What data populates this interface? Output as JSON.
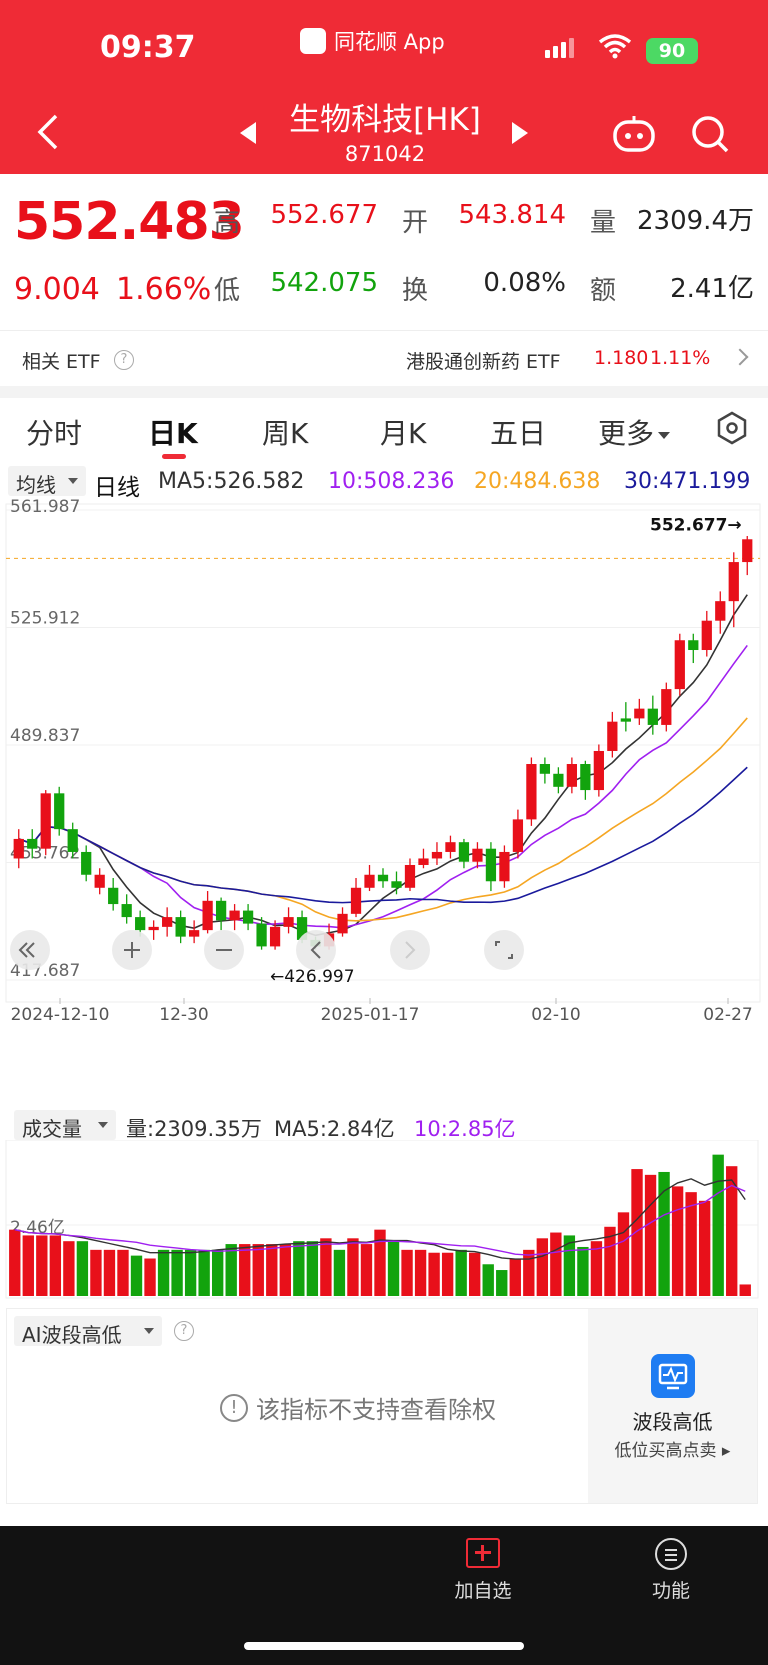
{
  "status": {
    "time": "09:37",
    "app": "同花顺 App",
    "battery": "90"
  },
  "header": {
    "title": "生物科技[HK]",
    "code": "871042"
  },
  "quote": {
    "price": "552.483",
    "change": "9.004",
    "change_pct": "1.66%",
    "high_label": "高",
    "high": "552.677",
    "open_label": "开",
    "open": "543.814",
    "vol_label": "量",
    "volume": "2309.4万",
    "low_label": "低",
    "low": "542.075",
    "turnover_label": "换",
    "turnover": "0.08%",
    "amount_label": "额",
    "amount": "2.41亿"
  },
  "etf": {
    "label": "相关 ETF",
    "name": "港股通创新药 ETF",
    "value": "1.180",
    "pct": "1.11%"
  },
  "tabs": [
    "分时",
    "日K",
    "周K",
    "月K",
    "五日",
    "更多"
  ],
  "ma_bar": {
    "selector": "均线",
    "period": "日线",
    "ma5": "MA5:526.582",
    "ma10": "10:508.236",
    "ma20": "20:484.638",
    "ma30": "30:471.199"
  },
  "colors": {
    "up": "#e8101a",
    "down": "#12a30d",
    "ma5": "#333333",
    "ma10": "#a020f0",
    "ma20": "#f5a623",
    "ma30": "#1a1a9c",
    "header": "#ef2b36"
  },
  "chart_data": [
    {
      "type": "candlestick",
      "ylim": [
        417.687,
        561.987
      ],
      "y_ticks": [
        "561.987",
        "525.912",
        "489.837",
        "453.762",
        "417.687"
      ],
      "x_ticks": [
        "2024-12-10",
        "12-30",
        "2025-01-17",
        "02-10",
        "02-27"
      ],
      "max_label": "552.677→",
      "min_label": "←426.997",
      "candles": [
        [
          455,
          461,
          452,
          464,
          1
        ],
        [
          461,
          458,
          455,
          464,
          0
        ],
        [
          458,
          475,
          456,
          476,
          1
        ],
        [
          475,
          464,
          462,
          477,
          0
        ],
        [
          464,
          457,
          455,
          466,
          0
        ],
        [
          457,
          450,
          448,
          459,
          0
        ],
        [
          450,
          446,
          444,
          452,
          1
        ],
        [
          446,
          441,
          439,
          449,
          0
        ],
        [
          441,
          437,
          435,
          444,
          0
        ],
        [
          437,
          433,
          431,
          439,
          0
        ],
        [
          433,
          434,
          430,
          436,
          1
        ],
        [
          434,
          437,
          431,
          440,
          1
        ],
        [
          437,
          431,
          429,
          439,
          0
        ],
        [
          431,
          433,
          429,
          436,
          1
        ],
        [
          433,
          442,
          432,
          445,
          1
        ],
        [
          442,
          436,
          433,
          443,
          0
        ],
        [
          436,
          439,
          433,
          441,
          1
        ],
        [
          439,
          435,
          433,
          441,
          0
        ],
        [
          435,
          428,
          427,
          437,
          0
        ],
        [
          428,
          434,
          427,
          436,
          1
        ],
        [
          434,
          437,
          432,
          440,
          1
        ],
        [
          437,
          430,
          429,
          439,
          0
        ],
        [
          430,
          428,
          427,
          431,
          0
        ],
        [
          428,
          432,
          427,
          435,
          1
        ],
        [
          432,
          438,
          431,
          440,
          1
        ],
        [
          438,
          446,
          437,
          449,
          1
        ],
        [
          446,
          450,
          445,
          453,
          1
        ],
        [
          450,
          448,
          446,
          452,
          0
        ],
        [
          448,
          446,
          444,
          451,
          0
        ],
        [
          446,
          453,
          445,
          455,
          1
        ],
        [
          453,
          455,
          452,
          458,
          1
        ],
        [
          455,
          457,
          453,
          460,
          1
        ],
        [
          457,
          460,
          455,
          462,
          1
        ],
        [
          460,
          454,
          452,
          461,
          0
        ],
        [
          454,
          458,
          452,
          460,
          1
        ],
        [
          458,
          448,
          445,
          460,
          0
        ],
        [
          448,
          457,
          446,
          459,
          1
        ],
        [
          457,
          467,
          455,
          470,
          1
        ],
        [
          467,
          484,
          465,
          486,
          1
        ],
        [
          484,
          481,
          478,
          486,
          0
        ],
        [
          481,
          477,
          475,
          483,
          0
        ],
        [
          477,
          484,
          475,
          486,
          1
        ],
        [
          484,
          476,
          473,
          485,
          0
        ],
        [
          476,
          488,
          474,
          490,
          1
        ],
        [
          488,
          497,
          486,
          500,
          1
        ],
        [
          497,
          498,
          494,
          503,
          0
        ],
        [
          498,
          501,
          496,
          504,
          1
        ],
        [
          501,
          496,
          493,
          505,
          0
        ],
        [
          496,
          507,
          494,
          509,
          1
        ],
        [
          507,
          522,
          505,
          524,
          1
        ],
        [
          522,
          519,
          515,
          524,
          0
        ],
        [
          519,
          528,
          517,
          531,
          1
        ],
        [
          528,
          534,
          524,
          537,
          1
        ],
        [
          534,
          546,
          526,
          549,
          1
        ],
        [
          546,
          553,
          542,
          554,
          1
        ]
      ]
    },
    {
      "type": "bar",
      "title": "成交量",
      "label_vol": "量:2309.35万",
      "label_ma5": "MA5:2.84亿",
      "label_ma10": "10:2.85亿",
      "ref_tick": "2.46亿",
      "values": [
        2.3,
        2.1,
        2.1,
        2.1,
        1.9,
        1.9,
        1.6,
        1.6,
        1.6,
        1.4,
        1.3,
        1.6,
        1.6,
        1.6,
        1.6,
        1.6,
        1.8,
        1.8,
        1.8,
        1.8,
        1.8,
        1.9,
        1.9,
        2.0,
        1.6,
        2.0,
        1.8,
        2.3,
        1.9,
        1.6,
        1.6,
        1.5,
        1.5,
        1.6,
        1.5,
        1.1,
        0.9,
        1.3,
        1.6,
        2.0,
        2.2,
        2.1,
        1.7,
        1.9,
        2.4,
        2.9,
        4.4,
        4.2,
        4.3,
        3.8,
        3.6,
        3.3,
        4.9,
        4.5,
        0.4
      ],
      "ups": [
        1,
        1,
        1,
        1,
        1,
        0,
        1,
        1,
        1,
        0,
        1,
        0,
        0,
        0,
        0,
        0,
        0,
        1,
        1,
        1,
        1,
        0,
        0,
        1,
        0,
        1,
        1,
        1,
        0,
        1,
        1,
        1,
        1,
        0,
        1,
        0,
        0,
        1,
        1,
        1,
        1,
        0,
        0,
        1,
        1,
        1,
        1,
        1,
        0,
        1,
        1,
        1,
        0,
        1,
        1
      ]
    }
  ],
  "volume_bar": {
    "selector": "成交量"
  },
  "ai": {
    "selector": "AI波段高低",
    "message": "该指标不支持查看除权",
    "side_title": "波段高低",
    "side_sub": "低位买高点卖"
  },
  "bottom": {
    "add": "加自选",
    "func": "功能"
  }
}
